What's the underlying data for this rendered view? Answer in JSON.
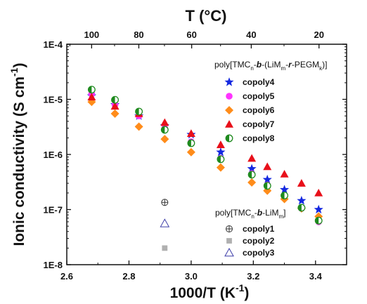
{
  "chart_data": {
    "type": "scatter",
    "x_label_main": "1000/T (K",
    "x_label_exp": "-1",
    "x_label_end": ")",
    "y_label_main": "Ionic conductivity (S cm",
    "y_label_exp": "-1",
    "y_label_end": ")",
    "top_axis_label": "T (°C)",
    "xlim": [
      2.6,
      3.5
    ],
    "ylim_log10": [
      -8,
      -4
    ],
    "y_scale": "log",
    "x_ticks": [
      "2.6",
      "2.8",
      "3.0",
      "3.2",
      "3.4"
    ],
    "x_tick_values": [
      2.6,
      2.8,
      3.0,
      3.2,
      3.4
    ],
    "y_ticks": [
      "1E-8",
      "1E-7",
      "1E-6",
      "1E-5",
      "1E-4"
    ],
    "y_tick_values": [
      -8,
      -7,
      -6,
      -5,
      -4
    ],
    "top_ticks": [
      "100",
      "80",
      "60",
      "40",
      "20"
    ],
    "top_tick_celsius": [
      100,
      80,
      60,
      40,
      20
    ],
    "legend1": {
      "title_parts": [
        "poly[TMC",
        "n",
        "-",
        "b",
        "-(LiM",
        "m",
        "-",
        "r",
        "-PEGM",
        "k",
        ")]"
      ],
      "entries": [
        "copoly4",
        "copoly5",
        "copoly6",
        "copoly7",
        "copoly8"
      ]
    },
    "legend2": {
      "title_parts": [
        "poly[TMC",
        "n",
        "-",
        "b",
        "-LiM",
        "m",
        "]"
      ],
      "entries": [
        "copoly1",
        "copoly2",
        "copoly3"
      ]
    },
    "series": [
      {
        "name": "copoly4",
        "marker": "star",
        "color": "#1428e0",
        "x": [
          2.68,
          2.755,
          2.832,
          2.915,
          3.0,
          3.095,
          3.195,
          3.245,
          3.3,
          3.355,
          3.41
        ],
        "y": [
          1.15e-05,
          8e-06,
          5e-06,
          3.3e-06,
          2.3e-06,
          1.1e-06,
          5.5e-07,
          3.5e-07,
          2.3e-07,
          1.45e-07,
          1e-07
        ]
      },
      {
        "name": "copoly5",
        "marker": "circle",
        "color": "#ff33ff",
        "x": [
          2.68,
          2.755,
          2.832,
          2.915,
          3.0,
          3.095,
          3.195,
          3.245,
          3.3,
          3.355,
          3.41
        ],
        "y": [
          1.25e-05,
          8e-06,
          5e-06,
          3e-06,
          1.7e-06,
          8.5e-07,
          4.5e-07,
          2.8e-07,
          1.8e-07,
          1.05e-07,
          6e-08
        ]
      },
      {
        "name": "copoly6",
        "marker": "diamond",
        "color": "#ff8c1a",
        "x": [
          2.68,
          2.755,
          2.832,
          2.915,
          3.0,
          3.095,
          3.195,
          3.245,
          3.3,
          3.355,
          3.41
        ],
        "y": [
          9e-06,
          5.5e-06,
          3.2e-06,
          1.9e-06,
          1.1e-06,
          5.8e-07,
          3.1e-07,
          2.2e-07,
          1.55e-07,
          1.05e-07,
          7.5e-08
        ]
      },
      {
        "name": "copoly7",
        "marker": "triangle",
        "color": "#e8101a",
        "x": [
          2.68,
          2.755,
          2.832,
          2.915,
          3.0,
          3.095,
          3.195,
          3.245,
          3.3,
          3.355,
          3.41
        ],
        "y": [
          1.1e-05,
          7.5e-06,
          5.5e-06,
          3.8e-06,
          2.4e-06,
          1.5e-06,
          8.5e-07,
          6e-07,
          4.4e-07,
          3e-07,
          2e-07
        ]
      },
      {
        "name": "copoly8",
        "marker": "halfcircle",
        "color": "#1e8a1e",
        "x": [
          2.68,
          2.755,
          2.832,
          2.915,
          3.0,
          3.095,
          3.195,
          3.245,
          3.3,
          3.355,
          3.41
        ],
        "y": [
          1.5e-05,
          9.8e-06,
          6e-06,
          2.8e-06,
          1.6e-06,
          8.2e-07,
          4.3e-07,
          2.7e-07,
          1.8e-07,
          1.08e-07,
          6.3e-08
        ]
      },
      {
        "name": "copoly1",
        "marker": "circleplus",
        "color": "#333333",
        "x": [
          2.915
        ],
        "y": [
          1.35e-07
        ]
      },
      {
        "name": "copoly2",
        "marker": "square",
        "color": "#b0b0b0",
        "x": [
          2.915
        ],
        "y": [
          2e-08
        ]
      },
      {
        "name": "copoly3",
        "marker": "opentriangle",
        "color": "#3c3ca8",
        "x": [
          2.915
        ],
        "y": [
          5.6e-08
        ]
      }
    ]
  }
}
